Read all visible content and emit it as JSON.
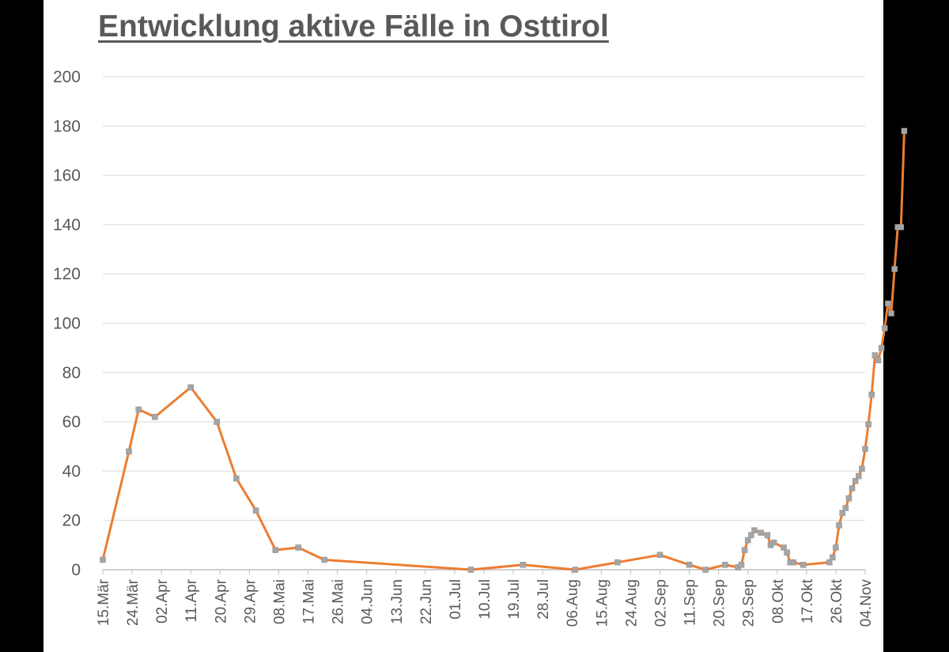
{
  "colors": {
    "background": "#000000",
    "panel": "#ffffff",
    "line": "#ED7D31",
    "marker": "#A5A5A5",
    "grid": "#D9D9D9",
    "text": "#595959"
  },
  "chart_data": {
    "type": "line",
    "title": "Entwicklung aktive Fälle in Osttirol",
    "xlabel": "",
    "ylabel": "",
    "ylim": [
      0,
      200
    ],
    "y_ticks": [
      0,
      20,
      40,
      60,
      80,
      100,
      120,
      140,
      160,
      180,
      200
    ],
    "x_range": [
      "2020-03-15",
      "2020-11-04"
    ],
    "x_tick_labels": [
      "15.Mär",
      "24.Mär",
      "02.Apr",
      "11.Apr",
      "20.Apr",
      "29.Apr",
      "08.Mai",
      "17.Mai",
      "26.Mai",
      "04.Jun",
      "13.Jun",
      "22.Jun",
      "01.Jul",
      "10.Jul",
      "19.Jul",
      "28.Jul",
      "06.Aug",
      "15.Aug",
      "24.Aug",
      "02.Sep",
      "11.Sep",
      "20.Sep",
      "29.Sep",
      "08.Okt",
      "17.Okt",
      "26.Okt",
      "04.Nov"
    ],
    "grid": "horizontal",
    "legend": "none",
    "series": [
      {
        "marker": "square",
        "points": [
          [
            "2020-03-15",
            4
          ],
          [
            "2020-03-23",
            48
          ],
          [
            "2020-03-26",
            65
          ],
          [
            "2020-03-31",
            62
          ],
          [
            "2020-04-11",
            74
          ],
          [
            "2020-04-19",
            60
          ],
          [
            "2020-04-25",
            37
          ],
          [
            "2020-05-01",
            24
          ],
          [
            "2020-05-07",
            8
          ],
          [
            "2020-05-14",
            9
          ],
          [
            "2020-05-22",
            4
          ],
          [
            "2020-07-06",
            0
          ],
          [
            "2020-07-22",
            2
          ],
          [
            "2020-08-07",
            0
          ],
          [
            "2020-08-20",
            3
          ],
          [
            "2020-09-02",
            6
          ],
          [
            "2020-09-11",
            2
          ],
          [
            "2020-09-16",
            0
          ],
          [
            "2020-09-22",
            2
          ],
          [
            "2020-09-26",
            1
          ],
          [
            "2020-09-27",
            2
          ],
          [
            "2020-09-28",
            8
          ],
          [
            "2020-09-29",
            12
          ],
          [
            "2020-09-30",
            14
          ],
          [
            "2020-10-01",
            16
          ],
          [
            "2020-10-03",
            15
          ],
          [
            "2020-10-05",
            14
          ],
          [
            "2020-10-06",
            10
          ],
          [
            "2020-10-07",
            11
          ],
          [
            "2020-10-10",
            9
          ],
          [
            "2020-10-11",
            7
          ],
          [
            "2020-10-12",
            3
          ],
          [
            "2020-10-13",
            3
          ],
          [
            "2020-10-16",
            2
          ],
          [
            "2020-10-24",
            3
          ],
          [
            "2020-10-25",
            5
          ],
          [
            "2020-10-26",
            9
          ],
          [
            "2020-10-27",
            18
          ],
          [
            "2020-10-28",
            23
          ],
          [
            "2020-10-29",
            25
          ],
          [
            "2020-10-30",
            29
          ],
          [
            "2020-10-31",
            33
          ],
          [
            "2020-11-01",
            36
          ],
          [
            "2020-11-02",
            38
          ],
          [
            "2020-11-03",
            41
          ],
          [
            "2020-11-04",
            49
          ],
          [
            "2020-11-05",
            59
          ],
          [
            "2020-11-06",
            71
          ],
          [
            "2020-11-07",
            87
          ],
          [
            "2020-11-08",
            85
          ],
          [
            "2020-11-09",
            90
          ],
          [
            "2020-11-10",
            98
          ],
          [
            "2020-11-11",
            108
          ],
          [
            "2020-11-12",
            104
          ],
          [
            "2020-11-13",
            122
          ],
          [
            "2020-11-14",
            139
          ],
          [
            "2020-11-15",
            139
          ],
          [
            "2020-11-16",
            178
          ]
        ]
      }
    ]
  }
}
